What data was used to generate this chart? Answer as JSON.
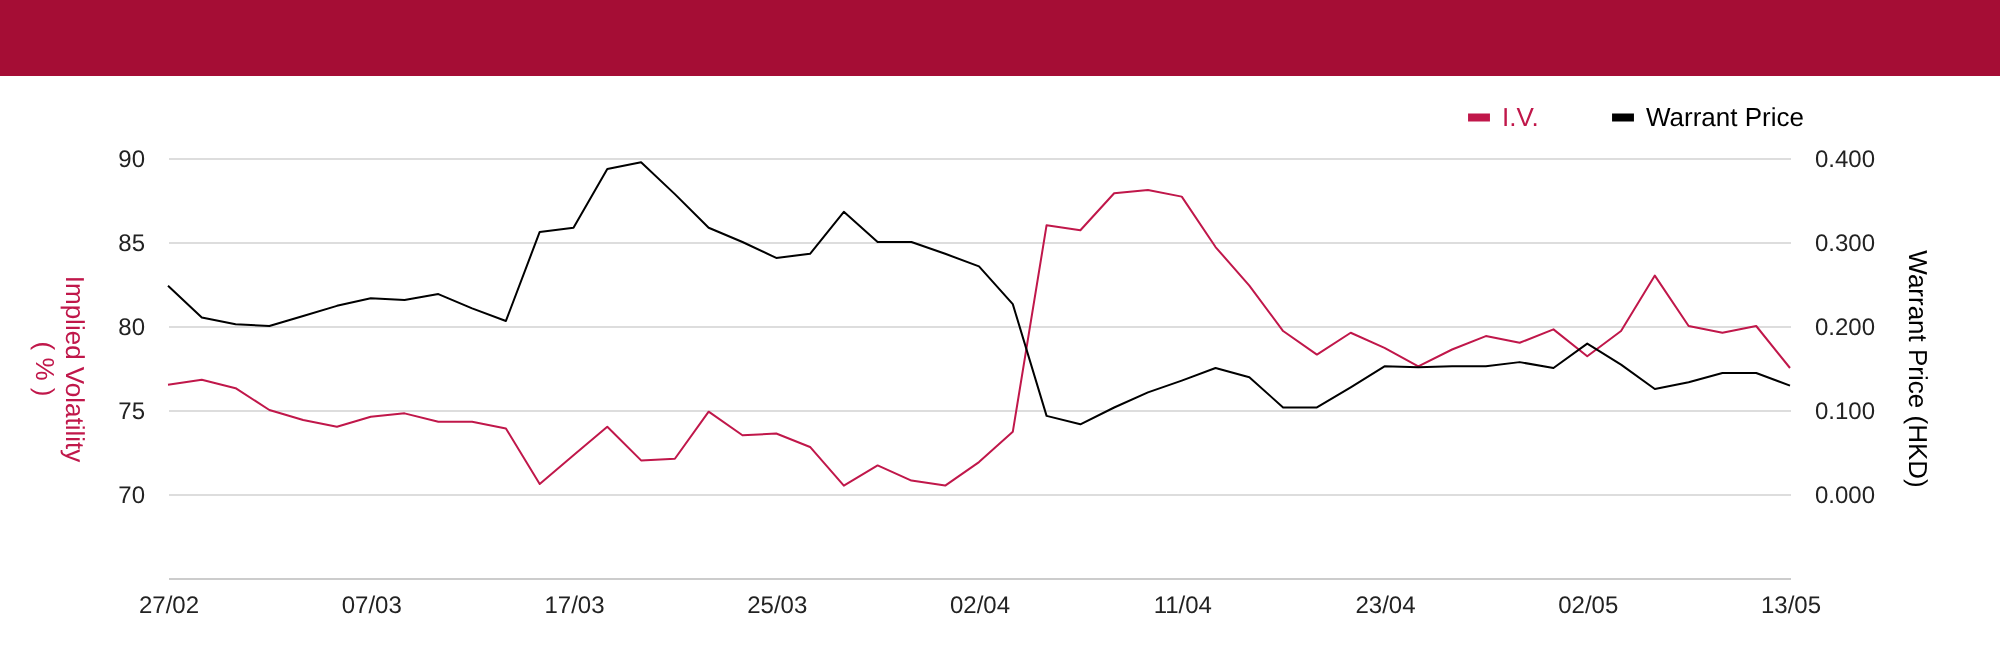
{
  "chart_data": {
    "type": "line",
    "ylabel": "Implied Volatility\n( % )",
    "y2label": "Warrant Price (HKD)",
    "categories": [
      "27/02",
      null,
      null,
      null,
      null,
      null,
      "07/03",
      null,
      null,
      null,
      null,
      null,
      "17/03",
      null,
      null,
      null,
      null,
      null,
      "25/03",
      null,
      null,
      null,
      null,
      null,
      "02/04",
      null,
      null,
      null,
      null,
      null,
      "11/04",
      null,
      null,
      null,
      null,
      null,
      "23/04",
      null,
      null,
      null,
      null,
      null,
      "02/05",
      null,
      null,
      null,
      null,
      null,
      "13/05"
    ],
    "series": [
      {
        "name": "I.V.",
        "color": "#c0174a",
        "axis": "y",
        "values": [
          76.5,
          76.8,
          76.3,
          75.0,
          74.4,
          74.0,
          74.6,
          74.8,
          74.3,
          74.3,
          73.9,
          70.6,
          72.3,
          74.0,
          72.0,
          72.1,
          74.9,
          73.5,
          73.6,
          72.8,
          70.5,
          71.7,
          70.8,
          70.5,
          71.9,
          73.7,
          86.0,
          85.7,
          87.9,
          88.1,
          87.7,
          84.7,
          82.4,
          79.7,
          78.3,
          79.6,
          78.7,
          77.6,
          78.6,
          79.4,
          79.0,
          79.8,
          78.2,
          79.7,
          83.0,
          80.0,
          79.6,
          80.0,
          77.5
        ]
      },
      {
        "name": "Warrant Price",
        "color": "#000000",
        "axis": "y2",
        "values": [
          0.248,
          0.21,
          0.202,
          0.2,
          0.212,
          0.224,
          0.233,
          0.231,
          0.238,
          0.221,
          0.206,
          0.312,
          0.317,
          0.387,
          0.395,
          0.357,
          0.317,
          0.3,
          0.281,
          0.286,
          0.336,
          0.3,
          0.3,
          0.286,
          0.271,
          0.226,
          0.093,
          0.083,
          0.103,
          0.121,
          0.135,
          0.15,
          0.139,
          0.103,
          0.103,
          0.127,
          0.152,
          0.151,
          0.152,
          0.152,
          0.157,
          0.15,
          0.179,
          0.154,
          0.125,
          0.133,
          0.144,
          0.144,
          0.129
        ]
      }
    ],
    "ylim": [
      65,
      90
    ],
    "yticks": [
      70,
      75,
      80,
      85,
      90
    ],
    "y2lim": [
      -0.1,
      0.4
    ],
    "y2ticks": [
      {
        "value": 0,
        "label": "0.000"
      },
      {
        "value": 0.1,
        "label": "0.100"
      },
      {
        "value": 0.2,
        "label": "0.200"
      },
      {
        "value": 0.3,
        "label": "0.300"
      },
      {
        "value": 0.4,
        "label": "0.400"
      }
    ],
    "grid": "y",
    "legend": "top right",
    "marker": "none",
    "line_style": "solid"
  }
}
